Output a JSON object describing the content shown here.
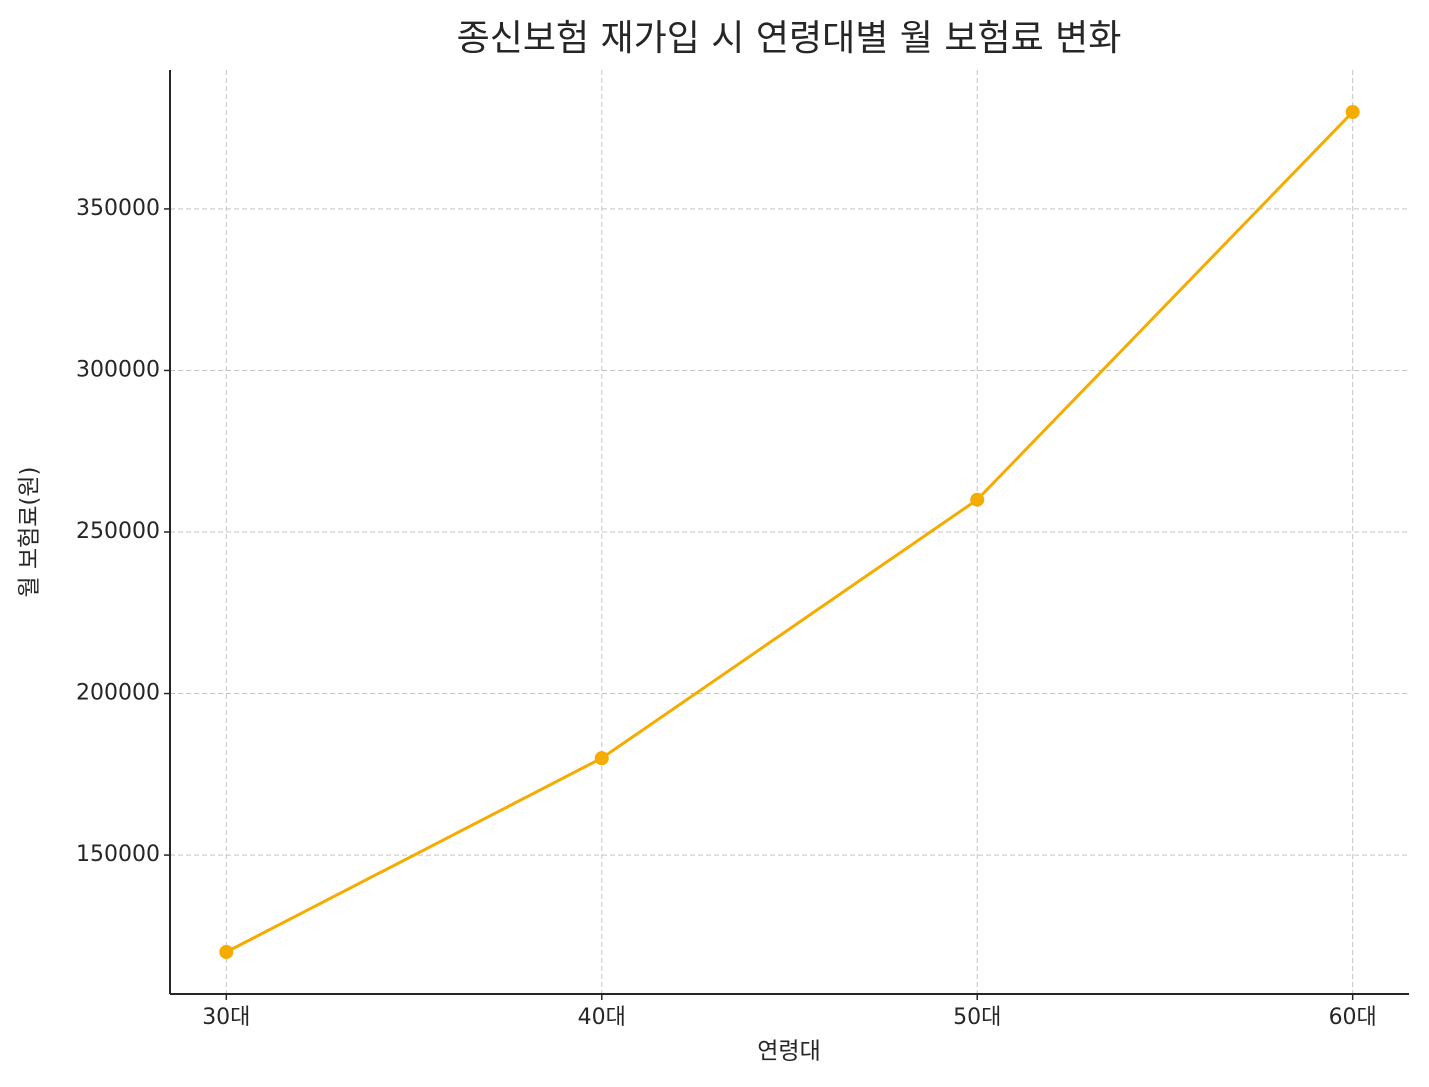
{
  "chart_data": {
    "type": "line",
    "title": "종신보험 재가입 시 연령대별 월 보험료 변화",
    "x_label": "연령대",
    "y_label": "월 보험료(원)",
    "categories": [
      "30대",
      "40대",
      "50대",
      "60대"
    ],
    "series": [
      {
        "name": "월 보험료",
        "color": "#f5ab00",
        "values": [
          120000,
          180000,
          260000,
          380000
        ]
      }
    ],
    "ylim": [
      107000,
      393000
    ],
    "yticks": [
      150000,
      200000,
      250000,
      300000,
      350000
    ],
    "grid": true
  }
}
